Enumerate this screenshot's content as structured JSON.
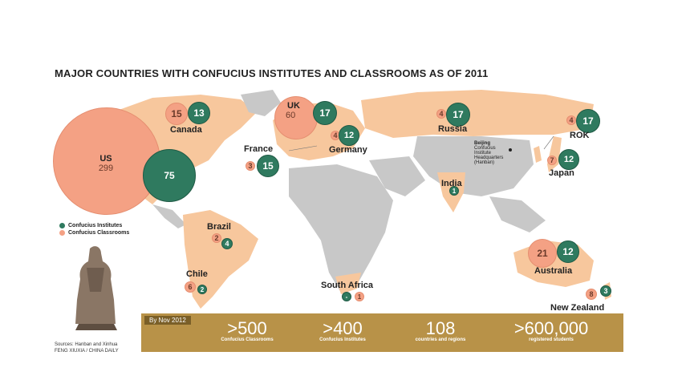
{
  "title": "MAJOR COUNTRIES WITH CONFUCIUS INSTITUTES AND CLASSROOMS AS OF 2011",
  "colors": {
    "institutes": "#2f7a5f",
    "classrooms": "#f4a184",
    "land_highlight": "#f7c79d",
    "land_other": "#c8c8c8",
    "banner": "#b89248"
  },
  "legend": {
    "institutes": "Confucius Institutes",
    "classrooms": "Confucius Classrooms"
  },
  "countries": {
    "us": {
      "name": "US",
      "classrooms": "299",
      "institutes": "75"
    },
    "canada": {
      "name": "Canada",
      "classrooms": "15",
      "institutes": "13"
    },
    "uk": {
      "name": "UK",
      "classrooms": "60",
      "institutes": "17"
    },
    "france": {
      "name": "France",
      "classrooms": "3",
      "institutes": "15"
    },
    "germany": {
      "name": "Germany",
      "classrooms": "4",
      "institutes": "12"
    },
    "russia": {
      "name": "Russia",
      "classrooms": "4",
      "institutes": "17"
    },
    "rok": {
      "name": "ROK",
      "classrooms": "4",
      "institutes": "17"
    },
    "japan": {
      "name": "Japan",
      "classrooms": "7",
      "institutes": "12"
    },
    "india": {
      "name": "India",
      "institutes": "1"
    },
    "brazil": {
      "name": "Brazil",
      "classrooms": "2",
      "institutes": "4"
    },
    "chile": {
      "name": "Chile",
      "classrooms": "6",
      "institutes": "2"
    },
    "southafrica": {
      "name": "South Africa",
      "institutes": "-",
      "classrooms": "1"
    },
    "australia": {
      "name": "Australia",
      "classrooms": "21",
      "institutes": "12"
    },
    "newzealand": {
      "name": "New Zealand",
      "classrooms": "8",
      "institutes": "3"
    }
  },
  "beijing_note": [
    "Beijing",
    "Confucius",
    "Institute",
    "Headquarters",
    "(Hanban)"
  ],
  "banner": {
    "date": "By Nov 2012",
    "stats": [
      {
        "value": ">500",
        "label": "Confucius Classrooms"
      },
      {
        "value": ">400",
        "label": "Confucius Institutes"
      },
      {
        "value": "108",
        "label": "countries and regions"
      },
      {
        "value": ">600,000",
        "label": "registered students"
      }
    ]
  },
  "sources": [
    "Sources: Hanban and Xinhua",
    "FENG XIUXIA / CHINA DAILY"
  ]
}
